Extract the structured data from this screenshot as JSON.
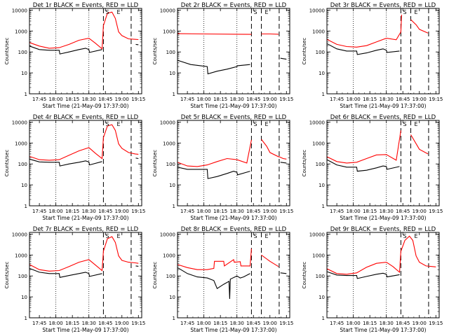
{
  "chart_data": [
    {
      "type": "line",
      "title": "Det 1r BLACK = Events, RED = LLD",
      "xlabel": "Start Time (21-May-09 17:37:00)",
      "ylabel": "Counts/sec",
      "y_scale": "log",
      "ylim": [
        1,
        12000
      ],
      "xlim": [
        17.6,
        19.3
      ],
      "x_ticks": [
        "17:45",
        "18:00",
        "18:15",
        "18:30",
        "18:45",
        "19:00",
        "19:15"
      ],
      "y_ticks": [
        "1",
        "10",
        "100",
        "1000",
        "10000"
      ],
      "dotted_vlines": [
        18.0,
        18.5
      ],
      "dashed_vlines": [
        18.72,
        19.14
      ],
      "annotations": [
        {
          "text": "S",
          "x": 18.78
        },
        {
          "text": "E",
          "x": 18.95
        }
      ],
      "series": [
        {
          "color": "#ff0000",
          "x": [
            17.6,
            17.75,
            17.9,
            18.05,
            18.2,
            18.35,
            18.5,
            18.6,
            18.7,
            18.72,
            18.78,
            18.85,
            18.9,
            18.95,
            19.0,
            19.1,
            19.2,
            19.25
          ],
          "y": [
            280,
            190,
            150,
            160,
            230,
            360,
            450,
            260,
            140,
            1800,
            7000,
            8000,
            4000,
            900,
            600,
            420,
            400,
            390
          ]
        },
        {
          "color": "#000000",
          "x": [
            17.6,
            17.75,
            17.9,
            18.05,
            18.06,
            18.2,
            18.35,
            18.45,
            18.5,
            18.51,
            18.7,
            18.71,
            19.2,
            19.21,
            19.25
          ],
          "y": [
            190,
            130,
            120,
            120,
            80,
            100,
            130,
            150,
            130,
            95,
            130,
            null,
            null,
            230,
            220
          ]
        }
      ]
    },
    {
      "type": "line",
      "title": "Det 2r BLACK = Events, RED = LLD",
      "xlabel": "Start Time (21-May-09 17:37:00)",
      "ylabel": "Counts/sec",
      "y_scale": "log",
      "ylim": [
        1,
        12000
      ],
      "xlim": [
        17.6,
        19.3
      ],
      "x_ticks": [
        "17:45",
        "18:00",
        "18:15",
        "18:30",
        "18:45",
        "19:00",
        "19:15"
      ],
      "y_ticks": [
        "1",
        "10",
        "100",
        "1000",
        "10000"
      ],
      "dotted_vlines": [
        18.0,
        18.5
      ],
      "dashed_vlines": [
        18.72,
        18.87,
        19.14
      ],
      "annotations": [
        {
          "text": "S",
          "x": 18.78
        },
        {
          "text": "E",
          "x": 18.95
        }
      ],
      "series": [
        {
          "color": "#ff0000",
          "x": [
            17.6,
            18.0,
            18.5,
            18.72,
            18.73,
            18.86,
            18.87,
            19.0,
            19.13,
            19.14,
            19.25
          ],
          "y": [
            750,
            720,
            700,
            690,
            null,
            null,
            720,
            720,
            700,
            null,
            null
          ]
        },
        {
          "color": "#000000",
          "x": [
            17.6,
            17.8,
            17.95,
            18.05,
            18.06,
            18.2,
            18.35,
            18.5,
            18.51,
            18.7,
            18.71,
            19.15,
            19.16,
            19.25
          ],
          "y": [
            40,
            25,
            22,
            20,
            9,
            12,
            15,
            20,
            22,
            25,
            null,
            null,
            50,
            45
          ]
        }
      ]
    },
    {
      "type": "line",
      "title": "Det 3r BLACK = Events, RED = LLD",
      "xlabel": "Start Time (21-May-09 17:37:00)",
      "ylabel": "Counts/sec",
      "y_scale": "log",
      "ylim": [
        1,
        12000
      ],
      "xlim": [
        17.6,
        19.3
      ],
      "x_ticks": [
        "17:45",
        "18:00",
        "18:15",
        "18:30",
        "18:45",
        "19:00",
        "19:15"
      ],
      "y_ticks": [
        "1",
        "10",
        "100",
        "1000",
        "10000"
      ],
      "dotted_vlines": [
        18.0,
        18.5
      ],
      "dashed_vlines": [
        18.72,
        18.87,
        19.14
      ],
      "annotations": [
        {
          "text": "S",
          "x": 18.78
        },
        {
          "text": "E",
          "x": 18.95
        }
      ],
      "series": [
        {
          "color": "#ff0000",
          "x": [
            17.6,
            17.75,
            17.9,
            18.05,
            18.2,
            18.35,
            18.5,
            18.65,
            18.72,
            18.73,
            18.86,
            18.87,
            18.95,
            19.0,
            19.13,
            19.14,
            19.2,
            19.25
          ],
          "y": [
            400,
            230,
            180,
            170,
            200,
            300,
            450,
            380,
            900,
            6000,
            null,
            3500,
            2000,
            1200,
            800,
            null,
            null,
            null
          ]
        },
        {
          "color": "#000000",
          "x": [
            17.6,
            17.75,
            17.9,
            18.05,
            18.06,
            18.2,
            18.35,
            18.45,
            18.5,
            18.51,
            18.7,
            18.71,
            19.25
          ],
          "y": [
            250,
            140,
            110,
            110,
            75,
            90,
            120,
            140,
            120,
            95,
            110,
            null,
            null
          ]
        }
      ]
    },
    {
      "type": "line",
      "title": "Det 4r BLACK = Events, RED = LLD",
      "xlabel": "Start Time (21-May-09 17:37:00)",
      "ylabel": "Counts/sec",
      "y_scale": "log",
      "ylim": [
        1,
        12000
      ],
      "xlim": [
        17.6,
        19.3
      ],
      "x_ticks": [
        "17:45",
        "18:00",
        "18:15",
        "18:30",
        "18:45",
        "19:00",
        "19:15"
      ],
      "y_ticks": [
        "1",
        "10",
        "100",
        "1000",
        "10000"
      ],
      "dotted_vlines": [
        18.0,
        18.5
      ],
      "dashed_vlines": [
        18.72,
        19.14
      ],
      "annotations": [
        {
          "text": "S",
          "x": 18.78
        },
        {
          "text": "E",
          "x": 18.95
        }
      ],
      "series": [
        {
          "color": "#ff0000",
          "x": [
            17.6,
            17.75,
            17.9,
            18.05,
            18.2,
            18.35,
            18.5,
            18.6,
            18.7,
            18.72,
            18.78,
            18.85,
            18.9,
            18.95,
            19.0,
            19.1,
            19.2,
            19.25
          ],
          "y": [
            230,
            160,
            150,
            160,
            260,
            420,
            600,
            320,
            180,
            1800,
            6500,
            7500,
            4000,
            900,
            550,
            350,
            300,
            290
          ]
        },
        {
          "color": "#000000",
          "x": [
            17.6,
            17.75,
            17.9,
            18.05,
            18.06,
            18.2,
            18.35,
            18.45,
            18.5,
            18.51,
            18.7,
            18.71,
            19.2,
            19.21,
            19.25
          ],
          "y": [
            170,
            125,
            120,
            120,
            80,
            100,
            120,
            140,
            125,
            90,
            130,
            null,
            null,
            190,
            180
          ]
        }
      ]
    },
    {
      "type": "line",
      "title": "Det 5r BLACK = Events, RED = LLD",
      "xlabel": "Start Time (21-May-09 17:37:00)",
      "ylabel": "Counts/sec",
      "y_scale": "log",
      "ylim": [
        1,
        12000
      ],
      "xlim": [
        17.6,
        19.3
      ],
      "x_ticks": [
        "17:45",
        "18:00",
        "18:15",
        "18:30",
        "18:45",
        "19:00",
        "19:15"
      ],
      "y_ticks": [
        "1",
        "10",
        "100",
        "1000",
        "10000"
      ],
      "dotted_vlines": [
        18.0,
        18.5
      ],
      "dashed_vlines": [
        18.72,
        18.87,
        19.14
      ],
      "annotations": [
        {
          "text": "S",
          "x": 18.78
        },
        {
          "text": "E",
          "x": 18.95
        }
      ],
      "series": [
        {
          "color": "#ff0000",
          "x": [
            17.6,
            17.75,
            17.9,
            18.05,
            18.2,
            18.35,
            18.5,
            18.65,
            18.72,
            18.73,
            18.86,
            18.87,
            18.95,
            19.0,
            19.13,
            19.14,
            19.2,
            19.25
          ],
          "y": [
            120,
            80,
            75,
            90,
            130,
            180,
            160,
            110,
            1400,
            null,
            null,
            1500,
            700,
            350,
            220,
            220,
            180,
            170
          ]
        },
        {
          "color": "#000000",
          "x": [
            17.6,
            17.75,
            17.9,
            18.05,
            18.06,
            18.2,
            18.35,
            18.45,
            18.5,
            18.51,
            18.7,
            18.71,
            19.15,
            19.16,
            19.25
          ],
          "y": [
            70,
            55,
            55,
            55,
            20,
            25,
            35,
            45,
            40,
            30,
            45,
            null,
            null,
            120,
            110
          ]
        }
      ]
    },
    {
      "type": "line",
      "title": "Det 6r BLACK = Events, RED = LLD",
      "xlabel": "Start Time (21-May-09 17:37:00)",
      "ylabel": "Counts/sec",
      "y_scale": "log",
      "ylim": [
        1,
        12000
      ],
      "xlim": [
        17.6,
        19.3
      ],
      "x_ticks": [
        "17:45",
        "18:00",
        "18:15",
        "18:30",
        "18:45",
        "19:00",
        "19:15"
      ],
      "y_ticks": [
        "1",
        "10",
        "100",
        "1000",
        "10000"
      ],
      "dotted_vlines": [
        18.0,
        18.5
      ],
      "dashed_vlines": [
        18.72,
        18.87,
        19.14
      ],
      "annotations": [
        {
          "text": "S",
          "x": 18.78
        },
        {
          "text": "E",
          "x": 18.95
        }
      ],
      "series": [
        {
          "color": "#ff0000",
          "x": [
            17.6,
            17.75,
            17.9,
            18.05,
            18.2,
            18.35,
            18.5,
            18.65,
            18.72,
            18.73,
            18.86,
            18.87,
            19.0,
            19.13,
            19.14,
            19.25
          ],
          "y": [
            220,
            130,
            110,
            120,
            180,
            270,
            280,
            150,
            4000,
            null,
            null,
            2500,
            500,
            300,
            null,
            null
          ]
        },
        {
          "color": "#000000",
          "x": [
            17.6,
            17.75,
            17.9,
            18.05,
            18.06,
            18.2,
            18.35,
            18.45,
            18.5,
            18.51,
            18.7,
            18.71,
            19.25
          ],
          "y": [
            160,
            90,
            70,
            70,
            45,
            50,
            65,
            80,
            75,
            55,
            75,
            null,
            null
          ]
        }
      ]
    },
    {
      "type": "line",
      "title": "Det 7r BLACK = Events, RED = LLD",
      "xlabel": "Start Time (21-May-09 17:37:00)",
      "ylabel": "Counts/sec",
      "y_scale": "log",
      "ylim": [
        1,
        12000
      ],
      "xlim": [
        17.6,
        19.3
      ],
      "x_ticks": [
        "17:45",
        "18:00",
        "18:15",
        "18:30",
        "18:45",
        "19:00",
        "19:15"
      ],
      "y_ticks": [
        "1",
        "10",
        "100",
        "1000",
        "10000"
      ],
      "dotted_vlines": [
        18.0,
        18.5
      ],
      "dashed_vlines": [
        18.72,
        19.14
      ],
      "annotations": [
        {
          "text": "S",
          "x": 18.78
        },
        {
          "text": "E",
          "x": 18.95
        }
      ],
      "series": [
        {
          "color": "#ff0000",
          "x": [
            17.6,
            17.75,
            17.9,
            18.05,
            18.2,
            18.35,
            18.5,
            18.6,
            18.7,
            18.72,
            18.78,
            18.85,
            18.9,
            18.95,
            19.0,
            19.1,
            19.2,
            19.25
          ],
          "y": [
            350,
            200,
            170,
            180,
            280,
            450,
            600,
            330,
            180,
            1500,
            6000,
            7500,
            4000,
            900,
            550,
            450,
            420,
            400
          ]
        },
        {
          "color": "#000000",
          "x": [
            17.6,
            17.75,
            17.9,
            18.05,
            18.06,
            18.2,
            18.35,
            18.45,
            18.5,
            18.51,
            18.7,
            18.71,
            19.2,
            19.21,
            19.25
          ],
          "y": [
            230,
            150,
            130,
            130,
            85,
            105,
            130,
            150,
            130,
            95,
            130,
            null,
            null,
            300,
            290
          ]
        }
      ]
    },
    {
      "type": "line",
      "title": "Det 8r BLACK = Events, RED = LLD",
      "xlabel": "Start Time (21-May-09 17:37:00)",
      "ylabel": "Counts/sec",
      "y_scale": "log",
      "ylim": [
        1,
        12000
      ],
      "xlim": [
        17.6,
        19.3
      ],
      "x_ticks": [
        "17:45",
        "18:00",
        "18:15",
        "18:30",
        "18:45",
        "19:00",
        "19:15"
      ],
      "y_ticks": [
        "1",
        "10",
        "100",
        "1000",
        "10000"
      ],
      "dotted_vlines": [
        18.0,
        18.5
      ],
      "dashed_vlines": [
        18.72,
        18.87,
        19.14
      ],
      "annotations": [
        {
          "text": "S",
          "x": 18.78
        },
        {
          "text": "E",
          "x": 18.95
        }
      ],
      "series": [
        {
          "color": "#ff0000",
          "x": [
            17.6,
            17.75,
            17.9,
            18.05,
            18.15,
            18.16,
            18.3,
            18.31,
            18.45,
            18.46,
            18.55,
            18.56,
            18.7,
            18.72,
            18.73,
            18.86,
            18.87,
            19.0,
            19.13,
            19.14,
            19.25
          ],
          "y": [
            350,
            250,
            200,
            200,
            230,
            500,
            500,
            300,
            600,
            450,
            480,
            300,
            300,
            2000,
            null,
            null,
            1000,
            500,
            280,
            null,
            null
          ]
        },
        {
          "color": "#000000",
          "x": [
            17.6,
            17.75,
            17.9,
            18.05,
            18.15,
            18.2,
            18.3,
            18.38,
            18.39,
            18.4,
            18.5,
            18.55,
            18.6,
            18.7,
            18.71,
            19.15,
            19.16,
            19.25
          ],
          "y": [
            250,
            130,
            90,
            80,
            60,
            25,
            40,
            55,
            8,
            70,
            100,
            80,
            90,
            130,
            null,
            null,
            140,
            130
          ]
        }
      ]
    },
    {
      "type": "line",
      "title": "Det 9r BLACK = Events, RED = LLD",
      "xlabel": "Start Time (21-May-09 17:37:00)",
      "ylabel": "Counts/sec",
      "y_scale": "log",
      "ylim": [
        1,
        12000
      ],
      "xlim": [
        17.6,
        19.3
      ],
      "x_ticks": [
        "17:45",
        "18:00",
        "18:15",
        "18:30",
        "18:45",
        "19:00",
        "19:15"
      ],
      "y_ticks": [
        "1",
        "10",
        "100",
        "1000",
        "10000"
      ],
      "dotted_vlines": [
        18.0,
        18.5
      ],
      "dashed_vlines": [
        18.72,
        19.14
      ],
      "annotations": [
        {
          "text": "S",
          "x": 18.78
        },
        {
          "text": "E",
          "x": 18.95
        }
      ],
      "series": [
        {
          "color": "#ff0000",
          "x": [
            17.6,
            17.75,
            17.9,
            18.05,
            18.2,
            18.35,
            18.5,
            18.6,
            18.7,
            18.72,
            18.78,
            18.85,
            18.9,
            18.95,
            19.0,
            19.1,
            19.2,
            19.25
          ],
          "y": [
            220,
            130,
            120,
            140,
            260,
            400,
            450,
            280,
            150,
            1500,
            5000,
            8000,
            5000,
            900,
            450,
            300,
            280,
            270
          ]
        },
        {
          "color": "#000000",
          "x": [
            17.6,
            17.75,
            17.9,
            18.05,
            18.06,
            18.2,
            18.35,
            18.45,
            18.5,
            18.51,
            18.7,
            18.71,
            19.2,
            19.21,
            19.25
          ],
          "y": [
            160,
            110,
            105,
            105,
            75,
            95,
            120,
            135,
            120,
            90,
            115,
            null,
            null,
            null,
            null
          ]
        }
      ]
    }
  ]
}
